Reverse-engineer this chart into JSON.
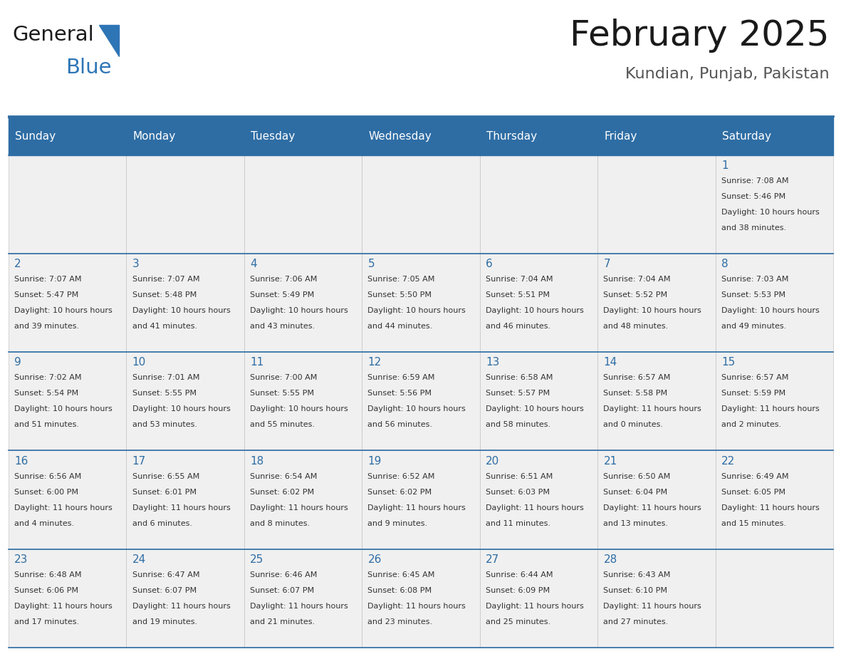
{
  "title": "February 2025",
  "subtitle": "Kundian, Punjab, Pakistan",
  "days_of_week": [
    "Sunday",
    "Monday",
    "Tuesday",
    "Wednesday",
    "Thursday",
    "Friday",
    "Saturday"
  ],
  "header_bg": "#2E6DA4",
  "header_text": "#FFFFFF",
  "cell_bg_light": "#F0F0F0",
  "border_color": "#2E6DA4",
  "day_num_color": "#2E6DA4",
  "text_color": "#333333",
  "logo_general_color": "#1a1a1a",
  "logo_blue_color": "#2E75B6",
  "calendar_data": [
    [
      null,
      null,
      null,
      null,
      null,
      null,
      {
        "day": 1,
        "sunrise": "7:08 AM",
        "sunset": "5:46 PM",
        "daylight": "10 hours and 38 minutes."
      }
    ],
    [
      {
        "day": 2,
        "sunrise": "7:07 AM",
        "sunset": "5:47 PM",
        "daylight": "10 hours and 39 minutes."
      },
      {
        "day": 3,
        "sunrise": "7:07 AM",
        "sunset": "5:48 PM",
        "daylight": "10 hours and 41 minutes."
      },
      {
        "day": 4,
        "sunrise": "7:06 AM",
        "sunset": "5:49 PM",
        "daylight": "10 hours and 43 minutes."
      },
      {
        "day": 5,
        "sunrise": "7:05 AM",
        "sunset": "5:50 PM",
        "daylight": "10 hours and 44 minutes."
      },
      {
        "day": 6,
        "sunrise": "7:04 AM",
        "sunset": "5:51 PM",
        "daylight": "10 hours and 46 minutes."
      },
      {
        "day": 7,
        "sunrise": "7:04 AM",
        "sunset": "5:52 PM",
        "daylight": "10 hours and 48 minutes."
      },
      {
        "day": 8,
        "sunrise": "7:03 AM",
        "sunset": "5:53 PM",
        "daylight": "10 hours and 49 minutes."
      }
    ],
    [
      {
        "day": 9,
        "sunrise": "7:02 AM",
        "sunset": "5:54 PM",
        "daylight": "10 hours and 51 minutes."
      },
      {
        "day": 10,
        "sunrise": "7:01 AM",
        "sunset": "5:55 PM",
        "daylight": "10 hours and 53 minutes."
      },
      {
        "day": 11,
        "sunrise": "7:00 AM",
        "sunset": "5:55 PM",
        "daylight": "10 hours and 55 minutes."
      },
      {
        "day": 12,
        "sunrise": "6:59 AM",
        "sunset": "5:56 PM",
        "daylight": "10 hours and 56 minutes."
      },
      {
        "day": 13,
        "sunrise": "6:58 AM",
        "sunset": "5:57 PM",
        "daylight": "10 hours and 58 minutes."
      },
      {
        "day": 14,
        "sunrise": "6:57 AM",
        "sunset": "5:58 PM",
        "daylight": "11 hours and 0 minutes."
      },
      {
        "day": 15,
        "sunrise": "6:57 AM",
        "sunset": "5:59 PM",
        "daylight": "11 hours and 2 minutes."
      }
    ],
    [
      {
        "day": 16,
        "sunrise": "6:56 AM",
        "sunset": "6:00 PM",
        "daylight": "11 hours and 4 minutes."
      },
      {
        "day": 17,
        "sunrise": "6:55 AM",
        "sunset": "6:01 PM",
        "daylight": "11 hours and 6 minutes."
      },
      {
        "day": 18,
        "sunrise": "6:54 AM",
        "sunset": "6:02 PM",
        "daylight": "11 hours and 8 minutes."
      },
      {
        "day": 19,
        "sunrise": "6:52 AM",
        "sunset": "6:02 PM",
        "daylight": "11 hours and 9 minutes."
      },
      {
        "day": 20,
        "sunrise": "6:51 AM",
        "sunset": "6:03 PM",
        "daylight": "11 hours and 11 minutes."
      },
      {
        "day": 21,
        "sunrise": "6:50 AM",
        "sunset": "6:04 PM",
        "daylight": "11 hours and 13 minutes."
      },
      {
        "day": 22,
        "sunrise": "6:49 AM",
        "sunset": "6:05 PM",
        "daylight": "11 hours and 15 minutes."
      }
    ],
    [
      {
        "day": 23,
        "sunrise": "6:48 AM",
        "sunset": "6:06 PM",
        "daylight": "11 hours and 17 minutes."
      },
      {
        "day": 24,
        "sunrise": "6:47 AM",
        "sunset": "6:07 PM",
        "daylight": "11 hours and 19 minutes."
      },
      {
        "day": 25,
        "sunrise": "6:46 AM",
        "sunset": "6:07 PM",
        "daylight": "11 hours and 21 minutes."
      },
      {
        "day": 26,
        "sunrise": "6:45 AM",
        "sunset": "6:08 PM",
        "daylight": "11 hours and 23 minutes."
      },
      {
        "day": 27,
        "sunrise": "6:44 AM",
        "sunset": "6:09 PM",
        "daylight": "11 hours and 25 minutes."
      },
      {
        "day": 28,
        "sunrise": "6:43 AM",
        "sunset": "6:10 PM",
        "daylight": "11 hours and 27 minutes."
      },
      null
    ]
  ]
}
